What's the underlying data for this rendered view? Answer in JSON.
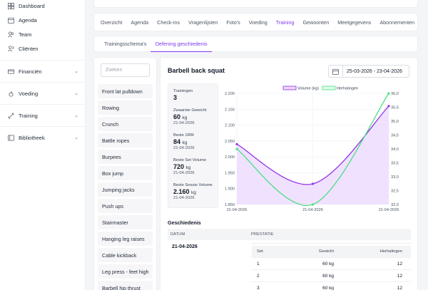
{
  "sidebar": {
    "items": [
      {
        "label": "Dashboard",
        "icon": "dashboard-icon"
      },
      {
        "label": "Agenda",
        "icon": "calendar-icon"
      },
      {
        "label": "Team",
        "icon": "team-icon"
      },
      {
        "label": "Cliënten",
        "icon": "clients-icon"
      }
    ],
    "groups": [
      {
        "label": "Financiën",
        "icon": "finance-icon"
      },
      {
        "label": "Voeding",
        "icon": "nutrition-icon"
      },
      {
        "label": "Training",
        "icon": "training-icon"
      },
      {
        "label": "Bibliotheek",
        "icon": "library-icon"
      }
    ]
  },
  "tabs": [
    "Overzicht",
    "Agenda",
    "Check-ins",
    "Vragenlijsten",
    "Foto's",
    "Voeding",
    "Training",
    "Gewoonten",
    "Meetgegevens",
    "Abonnementen"
  ],
  "active_tab": "Training",
  "subtabs": [
    "Trainingsschema's",
    "Oefening geschiedenis"
  ],
  "active_subtab": "Oefening geschiedenis",
  "exercise_list": {
    "search_placeholder": "Zoeken",
    "items": [
      "Front lat pulldown",
      "Rowing",
      "Crunch",
      "Battle ropes",
      "Burpees",
      "Box jump",
      "Jumping jacks",
      "Push ups",
      "Stairmaster",
      "Hanging leg raises",
      "Cable kickback",
      "Leg press - feet high",
      "Barbell hip thrust"
    ]
  },
  "detail": {
    "title": "Barbell back squat",
    "date_range": "25-03-2026 - 23-04-2026",
    "stats": {
      "trainingen": {
        "label": "Trainingen",
        "value": "3"
      },
      "zwaarste": {
        "label": "Zwaarste Gewicht",
        "value": "60",
        "unit": "kg",
        "date": "21-04-2026"
      },
      "beste_rm": {
        "label": "Beste 1RM",
        "value": "84",
        "unit": "kg",
        "date": "21-04-2026"
      },
      "beste_set": {
        "label": "Beste Set Volume",
        "value": "720",
        "unit": "kg",
        "date": "21-04-2026"
      },
      "beste_sessie": {
        "label": "Beste Sessie Volume",
        "value": "2.160",
        "unit": "kg",
        "date": "21-04-2026"
      }
    },
    "history": {
      "title": "Geschiedenis",
      "col_datum": "DATUM",
      "col_prestatie": "PRESTATIE",
      "date": "21-04-2026",
      "set_headers": {
        "set": "Set",
        "gewicht": "Gewicht",
        "herhalingen": "Herhalingen"
      },
      "sets": [
        {
          "set": "1",
          "gewicht": "60 kg",
          "herhalingen": "12"
        },
        {
          "set": "2",
          "gewicht": "60 kg",
          "herhalingen": "12"
        },
        {
          "set": "3",
          "gewicht": "60 kg",
          "herhalingen": "12"
        }
      ]
    }
  },
  "chart_data": {
    "type": "area",
    "x": [
      "21-04-2026",
      "21-04-2026",
      "21-04-2026"
    ],
    "series": [
      {
        "name": "Volume (kg)",
        "axis": "left",
        "color": "#9333ea",
        "values": [
          2040,
          1915,
          2160
        ]
      },
      {
        "name": "Herhalingen",
        "axis": "right",
        "color": "#4ade80",
        "values": [
          34.0,
          32.0,
          36.0
        ]
      }
    ],
    "ylim_left": [
      1850,
      2200
    ],
    "yticks_left": [
      "2.200",
      "2.150",
      "2.100",
      "2.050",
      "2.000",
      "1.950",
      "1.900",
      "1.850"
    ],
    "ylim_right": [
      32.0,
      36.0
    ],
    "yticks_right": [
      "36,0",
      "35,5",
      "35,0",
      "34,5",
      "34,0",
      "33,5",
      "33,0",
      "32,5",
      "32,0"
    ],
    "legend_position": "top"
  }
}
